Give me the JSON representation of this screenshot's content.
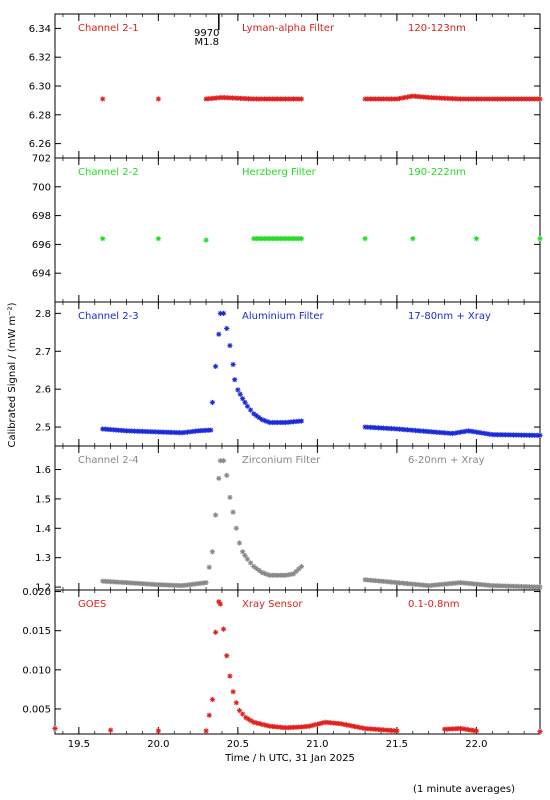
{
  "figure": {
    "xlabel": "Time / h UTC, 31 Jan 2025",
    "ylabel": "Calibrated Signal / (mW m⁻²)",
    "note": "(1 minute averages)",
    "xlim": [
      19.35,
      22.4
    ],
    "xticks": [
      "19.5",
      "20.0",
      "20.5",
      "21.0",
      "21.5",
      "22.0"
    ]
  },
  "flare_marker": {
    "x": 20.38,
    "label1": "9970",
    "label2": "M1.8"
  },
  "chart_data": [
    {
      "type": "scatter",
      "channel": "Channel 2-1",
      "filter": "Lyman-alpha Filter",
      "band": "120-123nm",
      "color": "#e0201c",
      "ylim": [
        6.25,
        6.35
      ],
      "yticks": [
        "6.26",
        "6.28",
        "6.30",
        "6.32",
        "6.34"
      ],
      "points": [
        [
          19.65,
          6.291
        ],
        [
          20.0,
          6.291
        ],
        [
          20.3,
          6.291
        ],
        [
          20.4,
          6.292
        ],
        [
          20.6,
          6.291
        ],
        [
          20.9,
          6.291
        ],
        [
          21.3,
          6.291
        ],
        [
          21.5,
          6.291
        ],
        [
          21.6,
          6.293
        ],
        [
          21.7,
          6.292
        ],
        [
          21.9,
          6.291
        ],
        [
          22.1,
          6.291
        ],
        [
          22.4,
          6.291
        ]
      ]
    },
    {
      "type": "scatter",
      "channel": "Channel 2-2",
      "filter": "Herzberg Filter",
      "band": "190-222nm",
      "color": "#22dd22",
      "ylim": [
        692,
        702
      ],
      "yticks": [
        "694",
        "696",
        "698",
        "700",
        "702"
      ],
      "points": [
        [
          19.65,
          696.4
        ],
        [
          20.0,
          696.4
        ],
        [
          20.3,
          696.3
        ],
        [
          20.6,
          696.4
        ],
        [
          20.9,
          696.4
        ],
        [
          21.3,
          696.4
        ],
        [
          21.6,
          696.4
        ],
        [
          22.0,
          696.4
        ],
        [
          22.4,
          696.4
        ]
      ]
    },
    {
      "type": "scatter",
      "channel": "Channel 2-3",
      "filter": "Aluminium Filter",
      "band": "17-80nm + Xray",
      "color": "#1a2ad8",
      "ylim": [
        2.45,
        2.83
      ],
      "yticks": [
        "2.5",
        "2.6",
        "2.7",
        "2.8"
      ],
      "points": [
        [
          19.65,
          2.495
        ],
        [
          19.8,
          2.49
        ],
        [
          20.0,
          2.487
        ],
        [
          20.15,
          2.485
        ],
        [
          20.25,
          2.49
        ],
        [
          20.33,
          2.492
        ],
        [
          20.34,
          2.565
        ],
        [
          20.36,
          2.66
        ],
        [
          20.38,
          2.745
        ],
        [
          20.39,
          2.8
        ],
        [
          20.41,
          2.8
        ],
        [
          20.43,
          2.76
        ],
        [
          20.45,
          2.715
        ],
        [
          20.47,
          2.665
        ],
        [
          20.48,
          2.625
        ],
        [
          20.5,
          2.598
        ],
        [
          20.53,
          2.575
        ],
        [
          20.56,
          2.555
        ],
        [
          20.6,
          2.535
        ],
        [
          20.65,
          2.52
        ],
        [
          20.7,
          2.512
        ],
        [
          20.8,
          2.512
        ],
        [
          20.9,
          2.516
        ],
        [
          21.3,
          2.5
        ],
        [
          21.5,
          2.495
        ],
        [
          21.7,
          2.488
        ],
        [
          21.85,
          2.483
        ],
        [
          21.95,
          2.49
        ],
        [
          22.1,
          2.48
        ],
        [
          22.4,
          2.478
        ]
      ]
    },
    {
      "type": "scatter",
      "channel": "Channel 2-4",
      "filter": "Zirconium Filter",
      "band": "6-20nm + Xray",
      "color": "#888888",
      "ylim": [
        1.19,
        1.68
      ],
      "yticks": [
        "1.2",
        "1.3",
        "1.4",
        "1.5",
        "1.6"
      ],
      "points": [
        [
          19.65,
          1.22
        ],
        [
          19.8,
          1.215
        ],
        [
          20.0,
          1.208
        ],
        [
          20.15,
          1.205
        ],
        [
          20.3,
          1.215
        ],
        [
          20.34,
          1.32
        ],
        [
          20.36,
          1.445
        ],
        [
          20.38,
          1.57
        ],
        [
          20.39,
          1.63
        ],
        [
          20.41,
          1.63
        ],
        [
          20.43,
          1.58
        ],
        [
          20.45,
          1.505
        ],
        [
          20.47,
          1.455
        ],
        [
          20.49,
          1.4
        ],
        [
          20.51,
          1.35
        ],
        [
          20.53,
          1.32
        ],
        [
          20.56,
          1.295
        ],
        [
          20.6,
          1.27
        ],
        [
          20.65,
          1.25
        ],
        [
          20.7,
          1.24
        ],
        [
          20.8,
          1.24
        ],
        [
          20.85,
          1.245
        ],
        [
          20.9,
          1.27
        ],
        [
          21.3,
          1.225
        ],
        [
          21.5,
          1.215
        ],
        [
          21.7,
          1.205
        ],
        [
          21.9,
          1.215
        ],
        [
          22.1,
          1.205
        ],
        [
          22.4,
          1.2
        ]
      ]
    },
    {
      "type": "scatter",
      "channel": "GOES",
      "filter": "Xray Sensor",
      "band": "0.1-0.8nm",
      "color": "#e0201c",
      "ylim": [
        0.0018,
        0.0202
      ],
      "yticks": [
        "0.005",
        "0.010",
        "0.015",
        "0.020"
      ],
      "points": [
        [
          19.35,
          0.0025
        ],
        [
          19.7,
          0.0023
        ],
        [
          20.0,
          0.0022
        ],
        [
          20.3,
          0.0022
        ],
        [
          20.34,
          0.0062
        ],
        [
          20.36,
          0.0148
        ],
        [
          20.38,
          0.0187
        ],
        [
          20.39,
          0.0184
        ],
        [
          20.41,
          0.0152
        ],
        [
          20.43,
          0.0118
        ],
        [
          20.45,
          0.0092
        ],
        [
          20.47,
          0.0072
        ],
        [
          20.49,
          0.0058
        ],
        [
          20.51,
          0.0048
        ],
        [
          20.55,
          0.0039
        ],
        [
          20.6,
          0.0033
        ],
        [
          20.7,
          0.0028
        ],
        [
          20.8,
          0.0026
        ],
        [
          20.9,
          0.0027
        ],
        [
          20.95,
          0.0028
        ],
        [
          21.05,
          0.0033
        ],
        [
          21.15,
          0.0031
        ],
        [
          21.3,
          0.0025
        ],
        [
          21.5,
          0.0022
        ],
        [
          21.8,
          0.0024
        ],
        [
          21.9,
          0.0025
        ],
        [
          22.0,
          0.0022
        ],
        [
          22.4,
          0.0021
        ]
      ]
    }
  ]
}
